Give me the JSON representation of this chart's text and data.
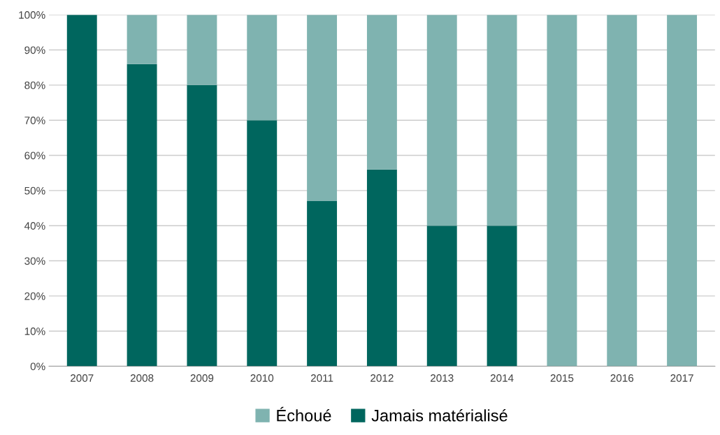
{
  "chart_data": {
    "type": "bar",
    "stacked": true,
    "categories": [
      "2007",
      "2008",
      "2009",
      "2010",
      "2011",
      "2012",
      "2013",
      "2014",
      "2015",
      "2016",
      "2017"
    ],
    "series": [
      {
        "name": "Jamais matérialisé",
        "color": "#00665e",
        "values": [
          100,
          86,
          80,
          70,
          47,
          56,
          40,
          40,
          0,
          0,
          0
        ]
      },
      {
        "name": "Échoué",
        "color": "#7fb3b0",
        "values": [
          0,
          14,
          20,
          30,
          53,
          44,
          60,
          60,
          100,
          100,
          100
        ]
      }
    ],
    "ylim": [
      0,
      100
    ],
    "yticks": [
      {
        "value": 0,
        "label": "0%"
      },
      {
        "value": 10,
        "label": "10%"
      },
      {
        "value": 20,
        "label": "20%"
      },
      {
        "value": 30,
        "label": "30%"
      },
      {
        "value": 40,
        "label": "40%"
      },
      {
        "value": 50,
        "label": "50%"
      },
      {
        "value": 60,
        "label": "60%"
      },
      {
        "value": 70,
        "label": "70%"
      },
      {
        "value": 80,
        "label": "80%"
      },
      {
        "value": 90,
        "label": "90%"
      },
      {
        "value": 100,
        "label": "100%"
      }
    ],
    "grid": "y",
    "legend": "bottom"
  }
}
